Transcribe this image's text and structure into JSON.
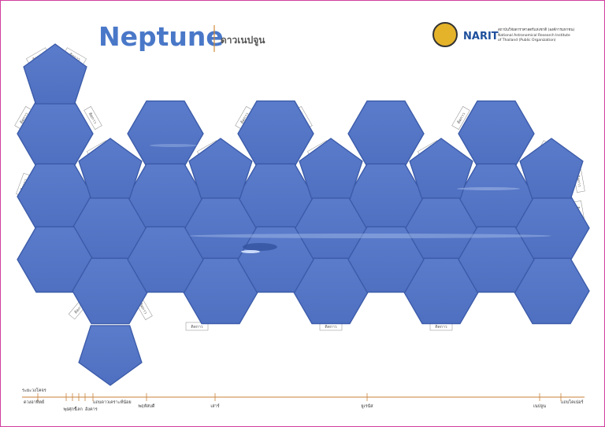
{
  "header": {
    "title": "Neptune",
    "subtitle": "ดาวเนปจูน"
  },
  "logo": {
    "acronym": "NARIT",
    "name_th": "สถาบันวิจัยดาราศาสตร์แห่งชาติ (องค์การมหาชน)",
    "name_en_1": "National Astronomical Research Institute",
    "name_en_2": "of Thailand (Public Organization)"
  },
  "net": {
    "tab_label": "ติดกาว"
  },
  "scale": {
    "title": "ระยะวงโคจร",
    "bodies": [
      "ดวงอาทิตย์",
      "พุธ",
      "ศุกร์",
      "โลก",
      "อังคาร",
      "แถบดาวเคราะห์น้อย",
      "พฤหัสบดี",
      "เสาร์",
      "ยูเรนัส",
      "เนปจูน",
      "แถบไคเปอร์"
    ]
  }
}
